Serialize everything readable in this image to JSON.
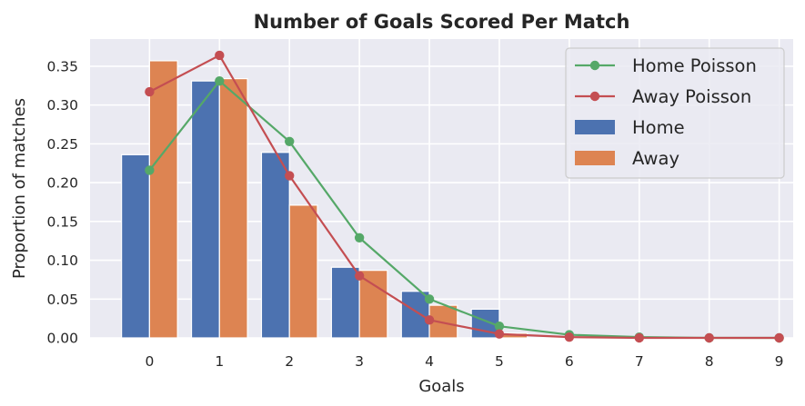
{
  "chart_data": {
    "type": "bar",
    "title": "Number of Goals Scored Per Match",
    "xlabel": "Goals",
    "ylabel": "Proportion of matches",
    "x": [
      0,
      1,
      2,
      3,
      4,
      5,
      6,
      7,
      8,
      9
    ],
    "ylim": [
      0,
      0.385
    ],
    "xlim": [
      -0.85,
      9.2
    ],
    "yticks": [
      "0.00",
      "0.05",
      "0.10",
      "0.15",
      "0.20",
      "0.25",
      "0.30",
      "0.35"
    ],
    "grid": true,
    "legend_position": "top-right",
    "bars": [
      {
        "name": "Home",
        "color": "#4c72b0",
        "values": [
          0.236,
          0.331,
          0.239,
          0.091,
          0.06,
          0.037,
          0,
          0,
          0,
          0
        ]
      },
      {
        "name": "Away",
        "color": "#dd8452",
        "values": [
          0.357,
          0.334,
          0.171,
          0.087,
          0.042,
          0.006,
          0,
          0,
          0,
          0
        ]
      }
    ],
    "lines": [
      {
        "name": "Home Poisson",
        "color": "#55a868",
        "values": [
          0.216,
          0.331,
          0.253,
          0.129,
          0.05,
          0.015,
          0.004,
          0.001,
          0.0,
          0.0
        ]
      },
      {
        "name": "Away Poisson",
        "color": "#c44e52",
        "values": [
          0.317,
          0.364,
          0.209,
          0.08,
          0.023,
          0.005,
          0.001,
          0.0,
          0.0,
          0.0
        ]
      }
    ]
  }
}
